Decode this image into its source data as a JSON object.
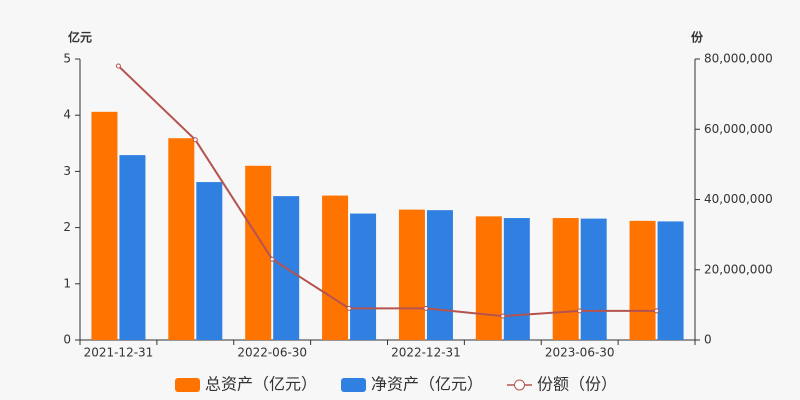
{
  "chart_data": {
    "type": "bar",
    "y_label": "亿元",
    "y2_label": "份",
    "categories": [
      "2021-12-31",
      null,
      "2022-06-30",
      null,
      "2022-12-31",
      null,
      "2023-06-30",
      null
    ],
    "series": [
      {
        "name": "总资产（亿元）",
        "type": "bar",
        "color": "#ff7300",
        "values": [
          4.06,
          3.59,
          3.1,
          2.57,
          2.32,
          2.2,
          2.17,
          2.12
        ]
      },
      {
        "name": "净资产（亿元）",
        "type": "bar",
        "color": "#2f80e0",
        "values": [
          3.29,
          2.81,
          2.56,
          2.25,
          2.31,
          2.17,
          2.16,
          2.11
        ]
      },
      {
        "name": "份额（份）",
        "type": "line",
        "axis": "y2",
        "color": "#b5534f",
        "values": [
          78000000,
          57000000,
          23000000,
          9000000,
          9000000,
          6800000,
          8300000,
          8300000
        ]
      }
    ],
    "ylim": [
      0,
      5
    ],
    "yticks": [
      0,
      1,
      2,
      3,
      4,
      5
    ],
    "y2lim": [
      0,
      80000000
    ],
    "y2ticks": [
      0,
      {
        "value": 20000000,
        "label": "20,000,000"
      },
      {
        "value": 40000000,
        "label": "40,000,000"
      },
      {
        "value": 60000000,
        "label": "60,000,000"
      },
      {
        "value": 80000000,
        "label": "80,000,000"
      }
    ],
    "legend": "bottom"
  }
}
